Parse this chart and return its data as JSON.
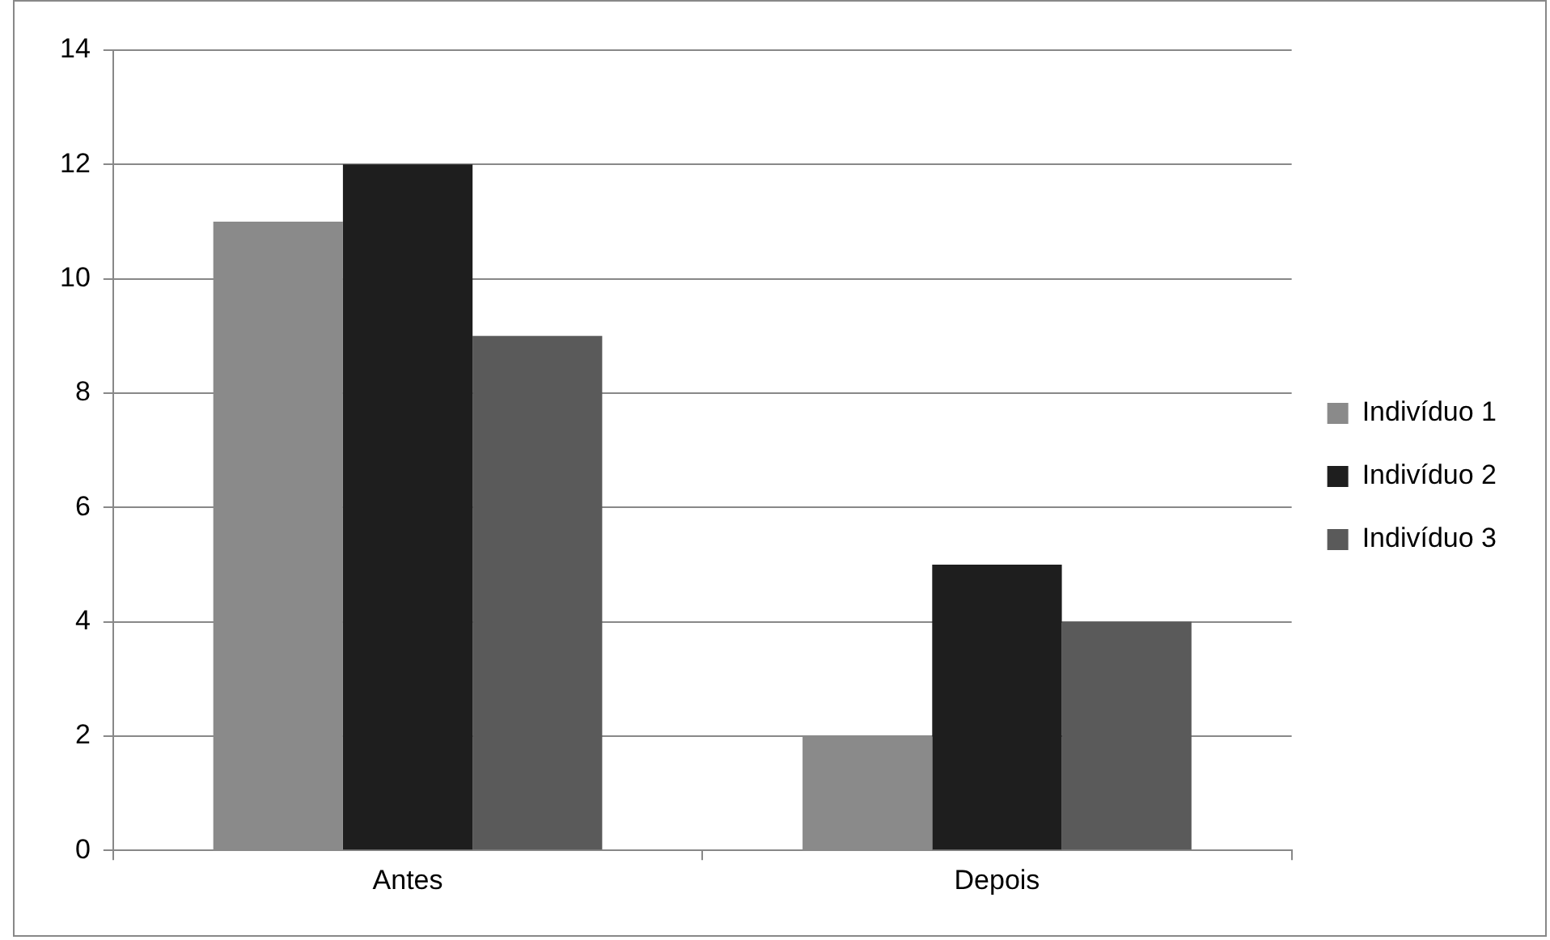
{
  "chart_data": {
    "type": "bar",
    "categories": [
      "Antes",
      "Depois"
    ],
    "series": [
      {
        "name": "Indivíduo 1",
        "color": "#8a8a8a",
        "values": [
          11,
          2
        ]
      },
      {
        "name": "Indivíduo 2",
        "color": "#1e1e1e",
        "values": [
          12,
          5
        ]
      },
      {
        "name": "Indivíduo 3",
        "color": "#5a5a5a",
        "values": [
          9,
          4
        ]
      }
    ],
    "ylim": [
      0,
      14
    ],
    "yticks": [
      0,
      2,
      4,
      6,
      8,
      10,
      12,
      14
    ],
    "grid": "y",
    "legend": "right"
  }
}
